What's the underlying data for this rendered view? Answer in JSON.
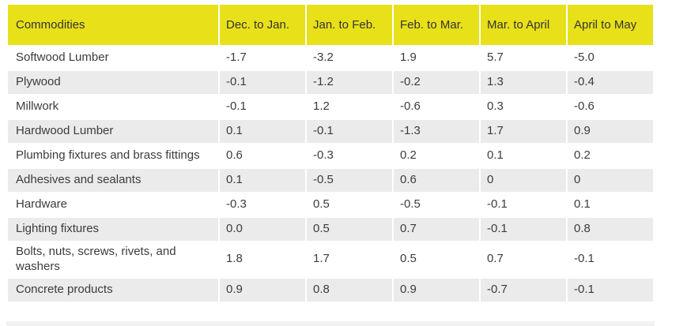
{
  "colors": {
    "header_bg": "#e8e019",
    "row_bg": "#ffffff",
    "row_alt_bg": "#ebebeb",
    "text": "#3c3c3c",
    "partial_row_bg": "#f2f2f2"
  },
  "chart_data": {
    "type": "table",
    "columns": [
      "Commodities",
      "Dec. to Jan.",
      "Jan. to Feb.",
      "Feb. to Mar.",
      "Mar. to April",
      "April to May"
    ],
    "rows": [
      {
        "commodity": "Softwood Lumber",
        "values": [
          "-1.7",
          "-3.2",
          "1.9",
          "5.7",
          "-5.0"
        ]
      },
      {
        "commodity": "Plywood",
        "values": [
          "-0.1",
          "-1.2",
          "-0.2",
          "1.3",
          "-0.4"
        ]
      },
      {
        "commodity": "Millwork",
        "values": [
          "-0.1",
          "1.2",
          "-0.6",
          "0.3",
          "-0.6"
        ]
      },
      {
        "commodity": "Hardwood Lumber",
        "values": [
          "0.1",
          "-0.1",
          "-1.3",
          "1.7",
          "0.9"
        ]
      },
      {
        "commodity": "Plumbing fixtures and brass fittings",
        "values": [
          "0.6",
          "-0.3",
          "0.2",
          "0.1",
          "0.2"
        ]
      },
      {
        "commodity": "Adhesives and sealants",
        "values": [
          "0.1",
          "-0.5",
          "0.6",
          "0",
          "0"
        ]
      },
      {
        "commodity": "Hardware",
        "values": [
          "-0.3",
          "0.5",
          "-0.5",
          "-0.1",
          "0.1"
        ]
      },
      {
        "commodity": "Lighting fixtures",
        "values": [
          "0.0",
          "0.5",
          "0.7",
          "-0.1",
          "0.8"
        ]
      },
      {
        "commodity": "Bolts, nuts, screws, rivets, and washers",
        "values": [
          "1.8",
          "1.7",
          "0.5",
          "0.7",
          "-0.1"
        ]
      },
      {
        "commodity": "Concrete products",
        "values": [
          "0.9",
          "0.8",
          "0.9",
          "-0.7",
          "-0.1"
        ]
      }
    ]
  }
}
